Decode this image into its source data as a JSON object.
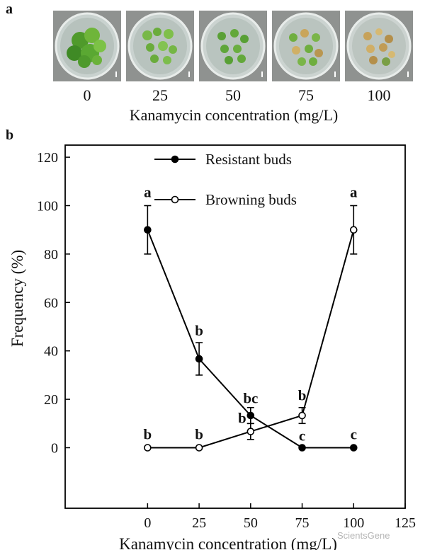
{
  "panel_a": {
    "label": "a",
    "photo_labels": [
      "0",
      "25",
      "50",
      "75",
      "100"
    ],
    "xlabel": "Kanamycin concentration (mg/L)"
  },
  "panel_b": {
    "label": "b"
  },
  "watermark": "ScientsGene",
  "chart_data": {
    "type": "line",
    "xlabel": "Kanamycin concentration (mg/L)",
    "ylabel": "Frequency (%)",
    "x": [
      0,
      25,
      50,
      75,
      100
    ],
    "xlim": [
      -40,
      125
    ],
    "ylim": [
      -25,
      125
    ],
    "xticks": [
      0,
      25,
      50,
      75,
      100,
      125
    ],
    "yticks": [
      0,
      20,
      40,
      60,
      80,
      100,
      120
    ],
    "legend_position": "top-center",
    "series": [
      {
        "name": "Resistant buds",
        "marker": "filled-circle",
        "values": [
          90,
          36.7,
          13.3,
          0,
          0
        ],
        "errors": [
          10,
          6.7,
          3.3,
          0,
          0
        ],
        "letters": [
          "a",
          "b",
          "bc",
          "c",
          "c"
        ]
      },
      {
        "name": "Browning buds",
        "marker": "open-circle",
        "values": [
          0,
          0,
          6.7,
          13.3,
          90
        ],
        "errors": [
          0,
          0,
          3.3,
          3.3,
          10
        ],
        "letters": [
          "b",
          "b",
          "b",
          "b",
          "a"
        ]
      }
    ]
  }
}
